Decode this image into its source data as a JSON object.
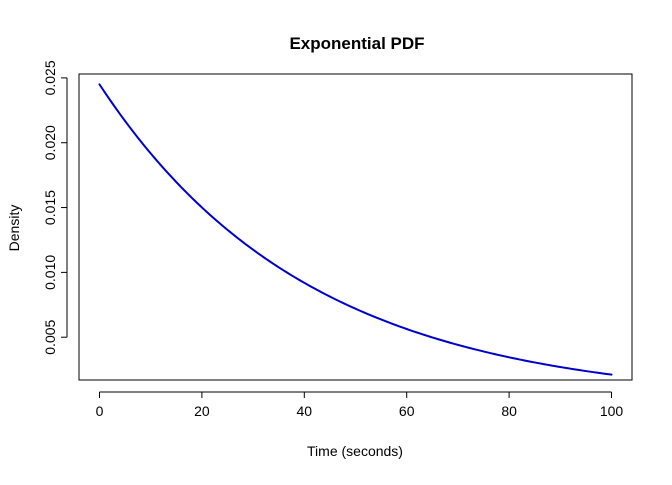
{
  "chart_data": {
    "type": "line",
    "title": "Exponential PDF",
    "xlabel": "Time (seconds)",
    "ylabel": "Density",
    "xlim": [
      -4,
      104
    ],
    "ylim": [
      0.0017,
      0.0253
    ],
    "x_ticks": [
      0,
      20,
      40,
      60,
      80,
      100
    ],
    "x_tick_labels": [
      "0",
      "20",
      "40",
      "60",
      "80",
      "100"
    ],
    "y_ticks": [
      0.005,
      0.01,
      0.015,
      0.02,
      0.025
    ],
    "y_tick_labels": [
      "0.005",
      "0.010",
      "0.015",
      "0.020",
      "0.025"
    ],
    "grid": false,
    "legend": "none",
    "series": [
      {
        "color": "#0000CD",
        "rate": 0.0245,
        "x": [
          0,
          5,
          10,
          15,
          20,
          25,
          30,
          35,
          40,
          45,
          50,
          55,
          60,
          65,
          70,
          75,
          80,
          85,
          90,
          95,
          100
        ],
        "y": [
          0.0245,
          0.0216,
          0.0191,
          0.0169,
          0.015,
          0.0132,
          0.0117,
          0.0104,
          0.0092,
          0.0081,
          0.0072,
          0.0063,
          0.0056,
          0.005,
          0.0044,
          0.0039,
          0.0034,
          0.003,
          0.0027,
          0.0024,
          0.0021
        ]
      }
    ]
  }
}
